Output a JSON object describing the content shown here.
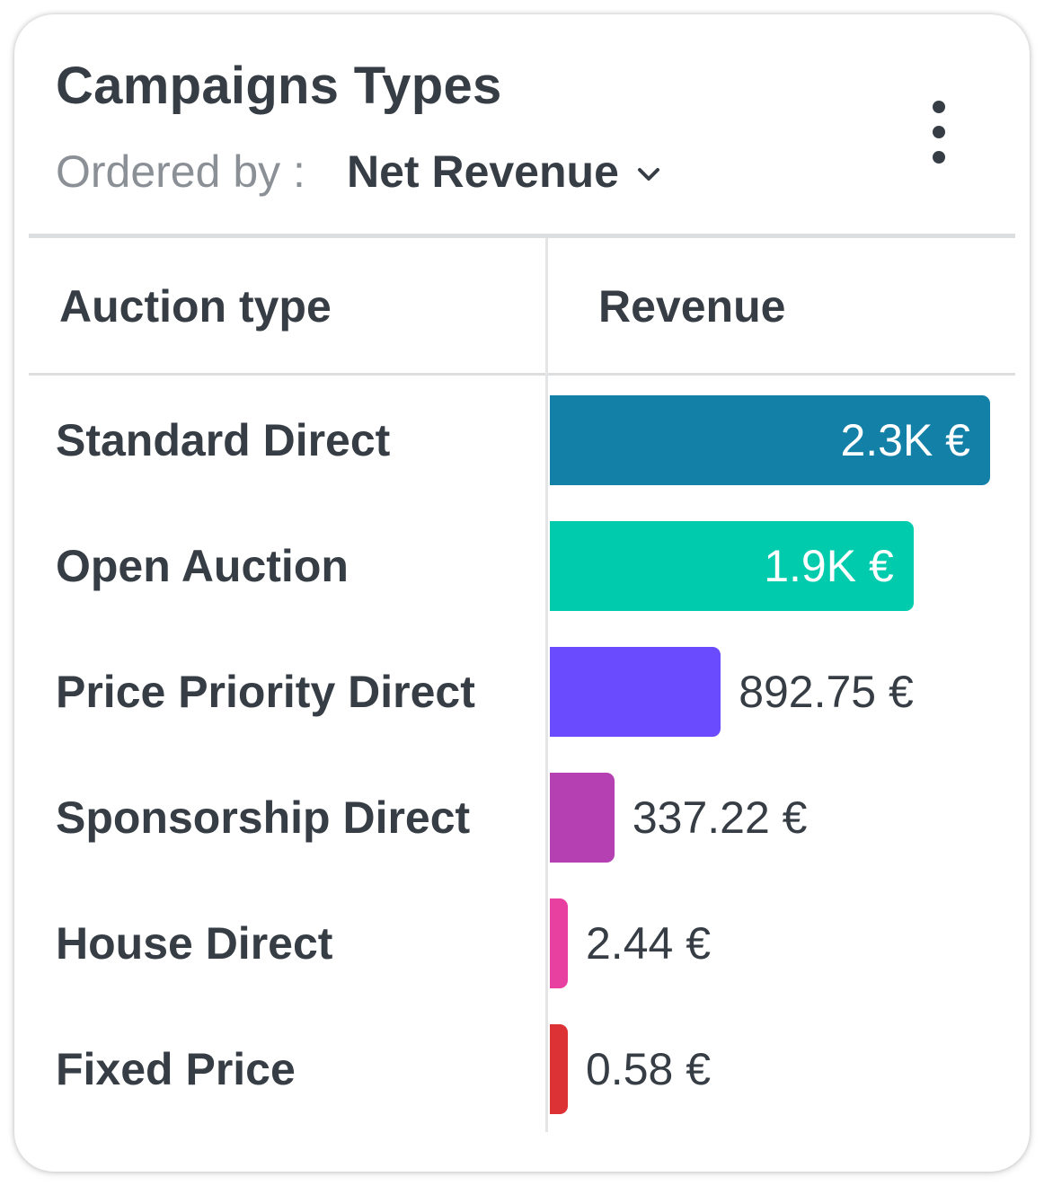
{
  "header": {
    "title": "Campaigns Types",
    "ordered_by_label": "Ordered by :",
    "ordered_by_value": "Net Revenue"
  },
  "table": {
    "columns": [
      "Auction type",
      "Revenue"
    ]
  },
  "chart_data": {
    "type": "bar",
    "orientation": "horizontal",
    "categories": [
      "Standard Direct",
      "Open Auction",
      "Price Priority Direct",
      "Sponsorship Direct",
      "House Direct",
      "Fixed Price"
    ],
    "values": [
      2300,
      1900,
      892.75,
      337.22,
      2.44,
      0.58
    ],
    "value_labels": [
      "2.3K €",
      "1.9K €",
      "892.75 €",
      "337.22 €",
      "2.44 €",
      "0.58 €"
    ],
    "colors": [
      "#1380a8",
      "#00ccad",
      "#6a4bfd",
      "#b440b2",
      "#e840a0",
      "#dc3236"
    ],
    "unit": "€"
  }
}
